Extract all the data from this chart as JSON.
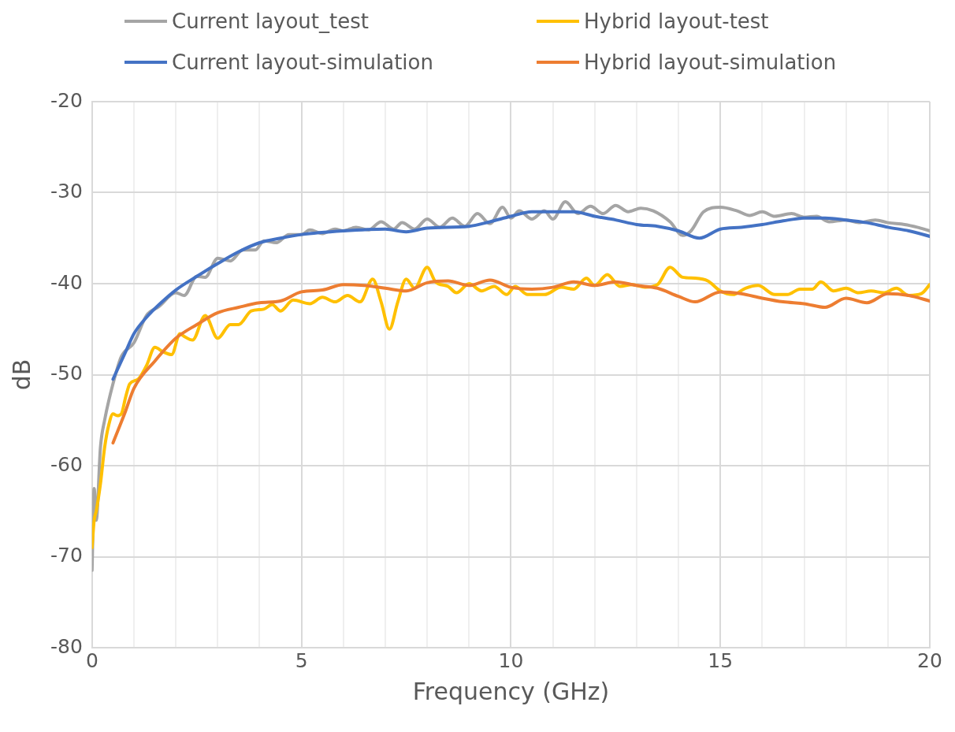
{
  "chart_data": {
    "type": "line",
    "xlabel": "Frequency (GHz)",
    "ylabel": "dB",
    "xlim": [
      0,
      20
    ],
    "ylim": [
      -80,
      -20
    ],
    "xticks": [
      0,
      {
        "value": 1,
        "label": null
      },
      {
        "value": 2,
        "label": null
      },
      {
        "value": 3,
        "label": null
      },
      {
        "value": 4,
        "label": null
      },
      5,
      {
        "value": 6,
        "label": null
      },
      {
        "value": 7,
        "label": null
      },
      {
        "value": 8,
        "label": null
      },
      {
        "value": 9,
        "label": null
      },
      10,
      {
        "value": 11,
        "label": null
      },
      {
        "value": 12,
        "label": null
      },
      {
        "value": 13,
        "label": null
      },
      {
        "value": 14,
        "label": null
      },
      15,
      {
        "value": 16,
        "label": null
      },
      {
        "value": 17,
        "label": null
      },
      {
        "value": 18,
        "label": null
      },
      {
        "value": 19,
        "label": null
      },
      20
    ],
    "yticks": [
      -80,
      -70,
      -60,
      -50,
      -40,
      -30,
      -20
    ],
    "grid": true,
    "legend": "top",
    "marker": "none",
    "line_style": "solid",
    "series": [
      {
        "name": "Current layout_test",
        "color": "#a5a5a5",
        "x": [
          0,
          0.05,
          0.1,
          0.2,
          0.3,
          0.5,
          0.7,
          1.0,
          1.3,
          1.6,
          2.0,
          2.2,
          2.5,
          2.7,
          3.0,
          3.3,
          3.6,
          3.9,
          4.1,
          4.4,
          4.7,
          5.0,
          5.2,
          5.5,
          5.8,
          6.0,
          6.3,
          6.6,
          6.9,
          7.2,
          7.4,
          7.7,
          8.0,
          8.3,
          8.6,
          8.9,
          9.2,
          9.5,
          9.8,
          10.0,
          10.2,
          10.5,
          10.8,
          11.0,
          11.3,
          11.6,
          11.9,
          12.2,
          12.5,
          12.8,
          13.1,
          13.4,
          13.8,
          14.1,
          14.3,
          14.6,
          15.0,
          15.4,
          15.7,
          16.0,
          16.3,
          16.7,
          17.0,
          17.3,
          17.6,
          18.0,
          18.3,
          18.7,
          19.0,
          19.4,
          19.7,
          20
        ],
        "values": [
          -71.5,
          -62.5,
          -66,
          -58,
          -55,
          -51,
          -48,
          -46.5,
          -43.5,
          -42.5,
          -41,
          -41.3,
          -39.2,
          -39.3,
          -37.2,
          -37.5,
          -36.3,
          -36.3,
          -35.3,
          -35.5,
          -34.6,
          -34.6,
          -34.1,
          -34.5,
          -34,
          -34.2,
          -33.8,
          -34.1,
          -33.2,
          -34,
          -33.3,
          -34,
          -32.9,
          -33.8,
          -32.8,
          -33.7,
          -32.3,
          -33.4,
          -31.6,
          -32.8,
          -32,
          -32.9,
          -32,
          -32.9,
          -31,
          -32.3,
          -31.5,
          -32.3,
          -31.4,
          -32.1,
          -31.7,
          -32,
          -33.2,
          -34.7,
          -34.2,
          -32.1,
          -31.6,
          -32,
          -32.5,
          -32.1,
          -32.6,
          -32.3,
          -32.7,
          -32.6,
          -33.2,
          -33,
          -33.3,
          -33,
          -33.3,
          -33.5,
          -33.8,
          -34.2
        ]
      },
      {
        "name": "Hybrid layout-test",
        "color": "#ffc000",
        "x": [
          0,
          0.05,
          0.1,
          0.2,
          0.3,
          0.4,
          0.5,
          0.6,
          0.7,
          0.8,
          0.9,
          1.1,
          1.3,
          1.5,
          1.7,
          1.9,
          2.1,
          2.2,
          2.4,
          2.7,
          3.0,
          3.3,
          3.5,
          3.8,
          4.1,
          4.3,
          4.5,
          4.8,
          5.2,
          5.5,
          5.8,
          6.1,
          6.4,
          6.7,
          6.9,
          7.1,
          7.3,
          7.5,
          7.7,
          8.0,
          8.2,
          8.5,
          8.7,
          9.0,
          9.3,
          9.6,
          9.9,
          10.1,
          10.4,
          10.8,
          11.2,
          11.5,
          11.8,
          12.0,
          12.3,
          12.6,
          12.9,
          13.2,
          13.5,
          13.8,
          14.1,
          14.4,
          14.7,
          15.0,
          15.3,
          15.6,
          15.9,
          16.3,
          16.6,
          16.9,
          17.2,
          17.4,
          17.7,
          18.0,
          18.3,
          18.6,
          18.9,
          19.2,
          19.5,
          19.8,
          20
        ],
        "values": [
          -69,
          -66,
          -65,
          -62,
          -58,
          -55.5,
          -54.3,
          -54.5,
          -54.3,
          -52.5,
          -51,
          -50.5,
          -49,
          -47,
          -47.5,
          -47.8,
          -45.5,
          -45.8,
          -46.2,
          -43.5,
          -46,
          -44.5,
          -44.5,
          -43,
          -42.8,
          -42.3,
          -43,
          -41.8,
          -42.2,
          -41.5,
          -42,
          -41.3,
          -42,
          -39.5,
          -42,
          -45,
          -42,
          -39.5,
          -40.5,
          -38.2,
          -39.8,
          -40.3,
          -41,
          -40,
          -40.8,
          -40.3,
          -41.2,
          -40.3,
          -41.2,
          -41.2,
          -40.4,
          -40.6,
          -39.4,
          -40.2,
          -39,
          -40.3,
          -40.1,
          -40.4,
          -40.1,
          -38.2,
          -39.3,
          -39.4,
          -39.7,
          -40.8,
          -41.2,
          -40.5,
          -40.2,
          -41.2,
          -41.2,
          -40.6,
          -40.6,
          -39.8,
          -40.8,
          -40.5,
          -41,
          -40.8,
          -41,
          -40.5,
          -41.3,
          -41.1,
          -40.1
        ]
      },
      {
        "name": "Current layout-simulation",
        "color": "#4472c4",
        "x": [
          0.5,
          0.8,
          1.0,
          1.3,
          1.6,
          2.0,
          2.5,
          3.0,
          3.5,
          4.0,
          4.5,
          5.0,
          6,
          7,
          7.5,
          8,
          9,
          9.5,
          10,
          10.5,
          11,
          11.5,
          12,
          12.5,
          13,
          13.5,
          14,
          14.5,
          15,
          15.5,
          16,
          16.5,
          17,
          17.5,
          18,
          18.5,
          19,
          19.5,
          20
        ],
        "values": [
          -50.5,
          -47.5,
          -45.5,
          -43.7,
          -42.3,
          -40.7,
          -39.2,
          -37.8,
          -36.5,
          -35.5,
          -35,
          -34.6,
          -34.2,
          -34,
          -34.3,
          -33.9,
          -33.7,
          -33.2,
          -32.6,
          -32.1,
          -32.1,
          -32.1,
          -32.6,
          -33,
          -33.5,
          -33.7,
          -34.2,
          -35,
          -34,
          -33.8,
          -33.5,
          -33.1,
          -32.8,
          -32.8,
          -33,
          -33.3,
          -33.8,
          -34.2,
          -34.8
        ]
      },
      {
        "name": "Hybrid layout-simulation",
        "color": "#ed7d31",
        "x": [
          0.5,
          0.8,
          1.0,
          1.5,
          2.0,
          2.5,
          3.0,
          3.5,
          4.0,
          4.5,
          5.0,
          5.5,
          6.0,
          6.5,
          7.0,
          7.5,
          8.0,
          8.5,
          9.0,
          9.5,
          10.0,
          10.5,
          11.0,
          11.5,
          12.0,
          12.5,
          13.0,
          13.5,
          14.0,
          14.4,
          15.0,
          15.5,
          16.0,
          16.5,
          17.0,
          17.5,
          18.0,
          18.5,
          19.0,
          19.5,
          20
        ],
        "values": [
          -57.5,
          -54,
          -51.5,
          -48.5,
          -46,
          -44.5,
          -43.2,
          -42.6,
          -42.1,
          -41.9,
          -40.9,
          -40.7,
          -40.1,
          -40.2,
          -40.5,
          -40.8,
          -39.9,
          -39.7,
          -40.2,
          -39.6,
          -40.4,
          -40.6,
          -40.4,
          -39.8,
          -40.2,
          -39.8,
          -40.2,
          -40.5,
          -41.4,
          -42,
          -40.9,
          -41.1,
          -41.6,
          -42,
          -42.2,
          -42.6,
          -41.6,
          -42.1,
          -41.1,
          -41.3,
          -41.9
        ]
      }
    ]
  }
}
